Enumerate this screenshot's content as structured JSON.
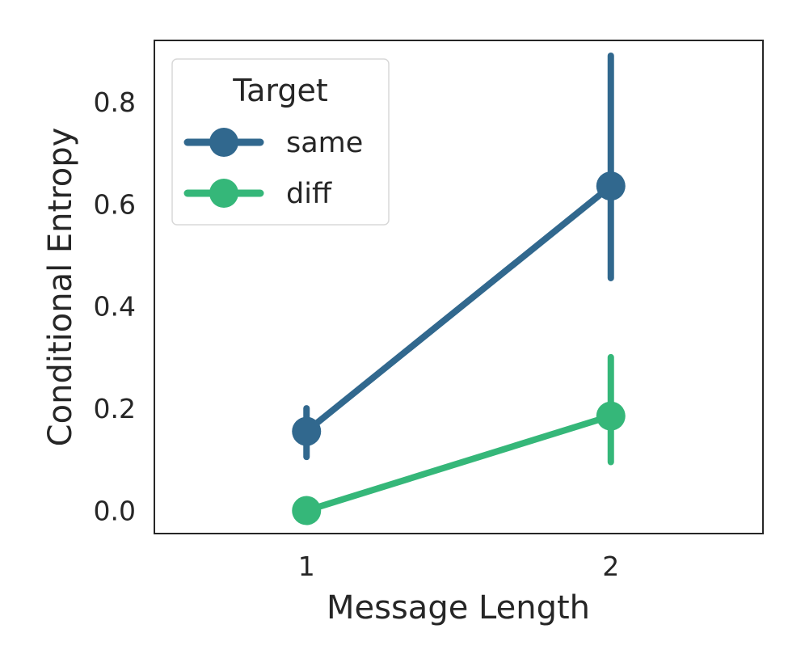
{
  "chart_data": {
    "type": "line",
    "title": "",
    "xlabel": "Message Length",
    "ylabel": "Conditional Entropy",
    "categories": [
      "1",
      "2"
    ],
    "xlim": [
      0.5,
      2.5
    ],
    "ylim": [
      -0.045,
      0.92
    ],
    "yticks": [
      0.0,
      0.2,
      0.4,
      0.6,
      0.8
    ],
    "ytick_labels": [
      "0.0",
      "0.2",
      "0.4",
      "0.6",
      "0.8"
    ],
    "grid": false,
    "legend": {
      "title": "Target",
      "placement": "top-left"
    },
    "series": [
      {
        "name": "same",
        "color": "#31688e",
        "values": [
          0.155,
          0.635
        ],
        "ci_low": [
          0.105,
          0.455
        ],
        "ci_high": [
          0.2,
          0.89
        ]
      },
      {
        "name": "diff",
        "color": "#35b779",
        "values": [
          0.0,
          0.185
        ],
        "ci_low": [
          0.0,
          0.095
        ],
        "ci_high": [
          0.0,
          0.3
        ]
      }
    ]
  }
}
